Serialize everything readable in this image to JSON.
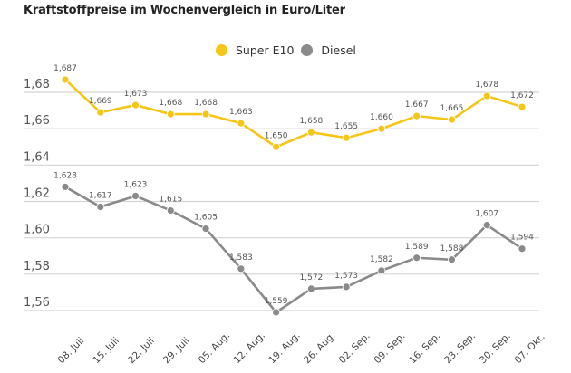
{
  "chart_data": {
    "type": "line",
    "title": "Kraftstoffpreise im Wochenvergleich in Euro/Liter",
    "xlabel": "",
    "ylabel": "",
    "categories": [
      "08. Juli",
      "15. Juli",
      "22. Juli",
      "29. Juli",
      "05. Aug.",
      "12. Aug.",
      "19. Aug.",
      "26. Aug.",
      "02. Sep.",
      "09. Sep.",
      "16. Sep.",
      "23. Sep.",
      "30. Sep.",
      "07. Okt."
    ],
    "series": [
      {
        "name": "Super E10",
        "color": "#f5c518",
        "values": [
          1.687,
          1.669,
          1.673,
          1.668,
          1.668,
          1.663,
          1.65,
          1.658,
          1.655,
          1.66,
          1.667,
          1.665,
          1.678,
          1.672
        ],
        "labels": [
          "1,687",
          "1,669",
          "1,673",
          "1,668",
          "1,668",
          "1,663",
          "1,650",
          "1,658",
          "1,655",
          "1,660",
          "1,667",
          "1,665",
          "1,678",
          "1,672"
        ]
      },
      {
        "name": "Diesel",
        "color": "#8a8a8a",
        "values": [
          1.628,
          1.617,
          1.623,
          1.615,
          1.605,
          1.583,
          1.559,
          1.572,
          1.573,
          1.582,
          1.589,
          1.588,
          1.607,
          1.594
        ],
        "labels": [
          "1,628",
          "1,617",
          "1,623",
          "1,615",
          "1,605",
          "1,583",
          "1,559",
          "1,572",
          "1,573",
          "1,582",
          "1,589",
          "1,588",
          "1,607",
          "1,594"
        ]
      }
    ],
    "yticks": [
      1.56,
      1.58,
      1.6,
      1.62,
      1.64,
      1.66,
      1.68
    ],
    "ytick_labels": [
      "1,56",
      "1,58",
      "1,60",
      "1,62",
      "1,64",
      "1,66",
      "1,68"
    ],
    "ylim": [
      1.56,
      1.68
    ],
    "grid": true,
    "legend_position": "top-center"
  }
}
